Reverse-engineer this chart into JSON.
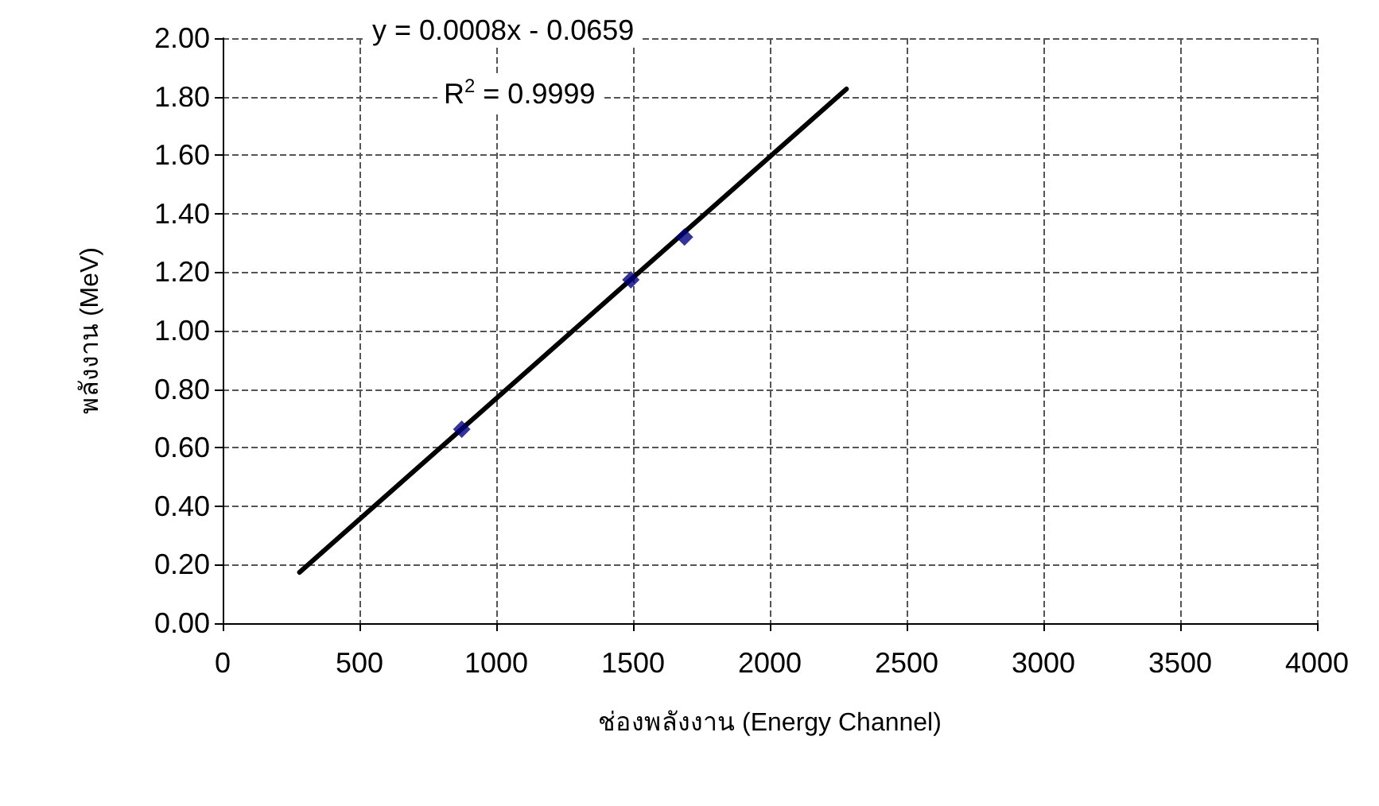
{
  "chart_data": {
    "type": "scatter",
    "xlabel": "ช่องพลังงาน (Energy Channel)",
    "ylabel": "พลังงาน (MeV)",
    "annotations": [
      "y = 0.0008x - 0.0659",
      "R$^{2}$ = 0.9999"
    ],
    "series": [
      {
        "color": "#000080",
        "x": [
          874,
          1492,
          1688
        ],
        "values": [
          0.663,
          1.174,
          1.32
        ],
        "marker": "diamond"
      },
      {
        "type": "line",
        "color": "#000000",
        "x": [
          281,
          2280
        ],
        "values": [
          0.174,
          1.826
        ],
        "marker": "none",
        "line_style": "solid"
      }
    ],
    "xlim": [
      0,
      4000
    ],
    "xticks": [
      0,
      500,
      1000,
      1500,
      2000,
      2500,
      3000,
      3500,
      4000
    ],
    "ylim": [
      0,
      2
    ],
    "yticks": [
      {
        "value": 0,
        "label": "0.00"
      },
      {
        "value": 0.2,
        "label": "0.20"
      },
      {
        "value": 0.4,
        "label": "0.40"
      },
      {
        "value": 0.6,
        "label": "0.60"
      },
      {
        "value": 0.8,
        "label": "0.80"
      },
      {
        "value": 1,
        "label": "1.00"
      },
      {
        "value": 1.2,
        "label": "1.20"
      },
      {
        "value": 1.4,
        "label": "1.40"
      },
      {
        "value": 1.6,
        "label": "1.60"
      },
      {
        "value": 1.8,
        "label": "1.80"
      },
      {
        "value": 2,
        "label": "2.00"
      }
    ],
    "grid": true
  }
}
